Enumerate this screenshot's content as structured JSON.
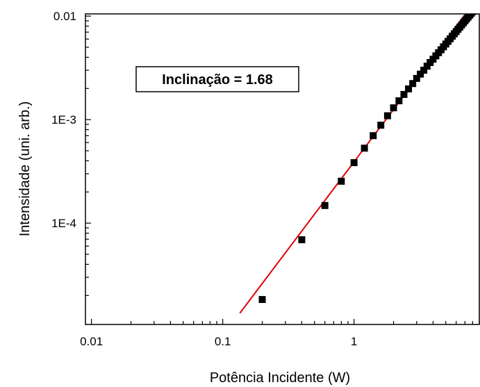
{
  "chart_data": {
    "type": "scatter",
    "xlabel": "Potência Incidente (W)",
    "ylabel": "Intensidade (uni. arb.)",
    "x_scale": "log",
    "y_scale": "log",
    "xlim": [
      0.009,
      9.0
    ],
    "ylim": [
      1.05e-05,
      0.0105
    ],
    "x_ticks": [
      {
        "value": 0.01,
        "label": "0.01"
      },
      {
        "value": 0.1,
        "label": "0.1"
      },
      {
        "value": 1,
        "label": "1"
      }
    ],
    "y_ticks": [
      {
        "value": 0.0001,
        "label": "1E-4"
      },
      {
        "value": 0.001,
        "label": "1E-3"
      },
      {
        "value": 0.01,
        "label": "0.01"
      }
    ],
    "grid": false,
    "annotation": "Inclinação = 1.68",
    "series": [
      {
        "kind": "scatter",
        "marker": "square",
        "color": "#000000",
        "x": [
          0.2,
          0.4,
          0.6,
          0.8,
          1.0,
          1.2,
          1.4,
          1.6,
          1.8,
          2.0,
          2.2,
          2.4,
          2.6,
          2.8,
          3.0,
          3.2,
          3.4,
          3.6,
          3.8,
          4.0,
          4.2,
          4.4,
          4.6,
          4.8,
          5.0,
          5.2,
          5.4,
          5.6,
          5.8,
          6.0,
          6.2,
          6.4,
          6.6,
          6.8,
          7.0,
          7.2,
          7.4,
          7.6,
          7.8,
          8.0,
          8.2,
          8.4,
          8.6
        ],
        "y": [
          1.83e-05,
          6.91e-05,
          0.000148,
          0.000254,
          0.000384,
          0.00053,
          0.0007,
          0.000883,
          0.00109,
          0.0013,
          0.00152,
          0.00175,
          0.00198,
          0.00223,
          0.0025,
          0.00275,
          0.003,
          0.00328,
          0.00356,
          0.00383,
          0.00413,
          0.00443,
          0.00473,
          0.00505,
          0.00537,
          0.0057,
          0.00604,
          0.00639,
          0.00674,
          0.00709,
          0.00746,
          0.00783,
          0.00821,
          0.0086,
          0.00899,
          0.00939,
          0.0098,
          0.0102,
          0.0106,
          0.011,
          0.0115,
          0.0119,
          0.0124
        ]
      },
      {
        "kind": "line",
        "color": "#e00000",
        "slope": 1.68,
        "x": [
          0.135,
          9.0
        ],
        "y": [
          1.35e-05,
          0.0157
        ]
      }
    ]
  }
}
